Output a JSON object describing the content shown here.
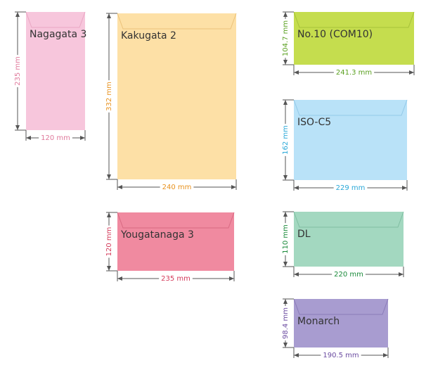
{
  "envelopes": [
    {
      "name": "Nagagata 3",
      "width": "120 mm",
      "height": "235 mm"
    },
    {
      "name": "Kakugata 2",
      "width": "240 mm",
      "height": "332 mm"
    },
    {
      "name": "Yougatanaga 3",
      "width": "235 mm",
      "height": "120 mm"
    },
    {
      "name": "No.10 (COM10)",
      "width": "241.3 mm",
      "height": "104.7 mm"
    },
    {
      "name": "ISO-C5",
      "width": "229 mm",
      "height": "162 mm"
    },
    {
      "name": "DL",
      "width": "220 mm",
      "height": "110 mm"
    },
    {
      "name": "Monarch",
      "width": "190.5 mm",
      "height": "98.4 mm"
    }
  ]
}
